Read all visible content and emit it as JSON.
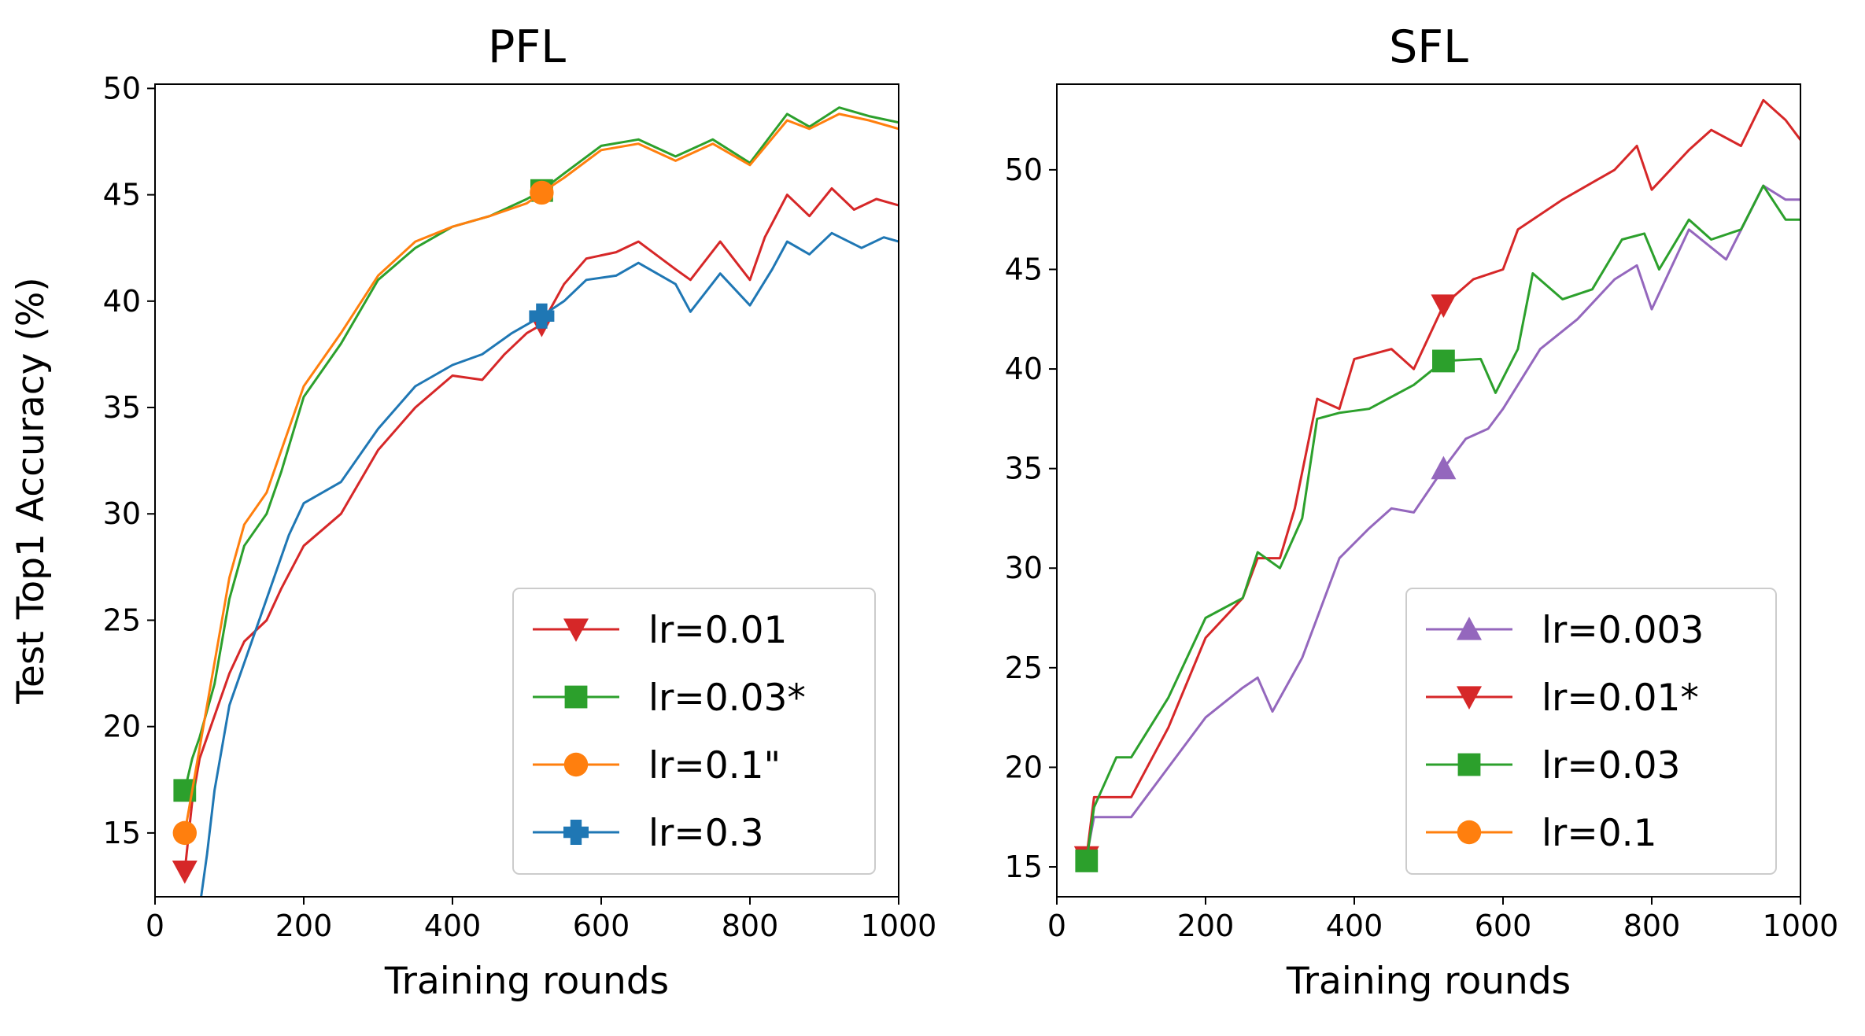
{
  "chart_data": [
    {
      "type": "line",
      "title": "PFL",
      "xlabel": "Training rounds",
      "ylabel": "Test Top1 Accuracy (%)",
      "xlim": [
        0,
        1000
      ],
      "ylim": [
        12,
        50.2
      ],
      "xticks": [
        0,
        200,
        400,
        600,
        800,
        1000
      ],
      "yticks": [
        15,
        20,
        25,
        30,
        35,
        40,
        45,
        50
      ],
      "legend_position": "lower right",
      "series": [
        {
          "name": "lr=0.01",
          "color": "#d62728",
          "marker": "triangle-down",
          "marker_points": [
            [
              40,
              13.2
            ],
            [
              520,
              38.9
            ]
          ],
          "points": [
            [
              40,
              13.2
            ],
            [
              50,
              16.5
            ],
            [
              60,
              18.5
            ],
            [
              80,
              20.5
            ],
            [
              100,
              22.5
            ],
            [
              120,
              24
            ],
            [
              150,
              25
            ],
            [
              170,
              26.5
            ],
            [
              200,
              28.5
            ],
            [
              250,
              30
            ],
            [
              300,
              33
            ],
            [
              350,
              35
            ],
            [
              400,
              36.5
            ],
            [
              440,
              36.3
            ],
            [
              470,
              37.5
            ],
            [
              500,
              38.5
            ],
            [
              520,
              38.9
            ],
            [
              550,
              40.8
            ],
            [
              580,
              42
            ],
            [
              620,
              42.3
            ],
            [
              650,
              42.8
            ],
            [
              700,
              41.5
            ],
            [
              720,
              41
            ],
            [
              760,
              42.8
            ],
            [
              800,
              41
            ],
            [
              820,
              43
            ],
            [
              850,
              45
            ],
            [
              880,
              44
            ],
            [
              910,
              45.3
            ],
            [
              940,
              44.3
            ],
            [
              970,
              44.8
            ],
            [
              1000,
              44.5
            ]
          ]
        },
        {
          "name": "lr=0.03*",
          "color": "#2ca02c",
          "marker": "square",
          "marker_points": [
            [
              40,
              17
            ],
            [
              520,
              45.2
            ]
          ],
          "points": [
            [
              40,
              17
            ],
            [
              50,
              18.5
            ],
            [
              60,
              19.5
            ],
            [
              80,
              22
            ],
            [
              100,
              26
            ],
            [
              120,
              28.5
            ],
            [
              150,
              30
            ],
            [
              170,
              32
            ],
            [
              200,
              35.5
            ],
            [
              250,
              38
            ],
            [
              300,
              41
            ],
            [
              350,
              42.5
            ],
            [
              400,
              43.5
            ],
            [
              450,
              44
            ],
            [
              500,
              44.8
            ],
            [
              520,
              45.2
            ],
            [
              550,
              46
            ],
            [
              600,
              47.3
            ],
            [
              650,
              47.6
            ],
            [
              700,
              46.8
            ],
            [
              750,
              47.6
            ],
            [
              800,
              46.5
            ],
            [
              850,
              48.8
            ],
            [
              880,
              48.2
            ],
            [
              920,
              49.1
            ],
            [
              960,
              48.7
            ],
            [
              1000,
              48.4
            ]
          ]
        },
        {
          "name": "lr=0.1\"",
          "color": "#ff7f0e",
          "marker": "circle",
          "marker_points": [
            [
              40,
              15
            ],
            [
              520,
              45.1
            ]
          ],
          "points": [
            [
              40,
              15
            ],
            [
              50,
              17
            ],
            [
              60,
              19
            ],
            [
              80,
              23
            ],
            [
              100,
              27
            ],
            [
              120,
              29.5
            ],
            [
              150,
              31
            ],
            [
              170,
              33
            ],
            [
              200,
              36
            ],
            [
              250,
              38.5
            ],
            [
              300,
              41.2
            ],
            [
              350,
              42.8
            ],
            [
              400,
              43.5
            ],
            [
              450,
              44
            ],
            [
              500,
              44.6
            ],
            [
              520,
              45.1
            ],
            [
              550,
              45.8
            ],
            [
              600,
              47.1
            ],
            [
              650,
              47.4
            ],
            [
              700,
              46.6
            ],
            [
              750,
              47.4
            ],
            [
              800,
              46.4
            ],
            [
              850,
              48.5
            ],
            [
              880,
              48.1
            ],
            [
              920,
              48.8
            ],
            [
              960,
              48.5
            ],
            [
              1000,
              48.1
            ]
          ]
        },
        {
          "name": "lr=0.3",
          "color": "#1f77b4",
          "marker": "plus",
          "marker_points": [
            [
              520,
              39.3
            ]
          ],
          "points": [
            [
              62,
              12
            ],
            [
              70,
              14
            ],
            [
              80,
              17
            ],
            [
              100,
              21
            ],
            [
              130,
              24
            ],
            [
              150,
              26
            ],
            [
              180,
              29
            ],
            [
              200,
              30.5
            ],
            [
              250,
              31.5
            ],
            [
              300,
              34
            ],
            [
              350,
              36
            ],
            [
              400,
              37
            ],
            [
              440,
              37.5
            ],
            [
              480,
              38.5
            ],
            [
              520,
              39.3
            ],
            [
              550,
              40
            ],
            [
              580,
              41
            ],
            [
              620,
              41.2
            ],
            [
              650,
              41.8
            ],
            [
              700,
              40.8
            ],
            [
              720,
              39.5
            ],
            [
              760,
              41.3
            ],
            [
              800,
              39.8
            ],
            [
              830,
              41.5
            ],
            [
              850,
              42.8
            ],
            [
              880,
              42.2
            ],
            [
              910,
              43.2
            ],
            [
              950,
              42.5
            ],
            [
              980,
              43
            ],
            [
              1000,
              42.8
            ]
          ]
        }
      ]
    },
    {
      "type": "line",
      "title": "SFL",
      "xlabel": "Training rounds",
      "ylabel": "",
      "xlim": [
        0,
        1000
      ],
      "ylim": [
        13.5,
        54.3
      ],
      "xticks": [
        0,
        200,
        400,
        600,
        800,
        1000
      ],
      "yticks": [
        15,
        20,
        25,
        30,
        35,
        40,
        45,
        50
      ],
      "legend_position": "lower right",
      "series": [
        {
          "name": "lr=0.003",
          "color": "#9467bd",
          "marker": "triangle-up",
          "marker_points": [
            [
              520,
              35
            ]
          ],
          "points": [
            [
              40,
              15.5
            ],
            [
              50,
              17.5
            ],
            [
              70,
              17.5
            ],
            [
              100,
              17.5
            ],
            [
              150,
              20
            ],
            [
              200,
              22.5
            ],
            [
              250,
              24
            ],
            [
              270,
              24.5
            ],
            [
              290,
              22.8
            ],
            [
              330,
              25.5
            ],
            [
              350,
              27.5
            ],
            [
              380,
              30.5
            ],
            [
              420,
              32
            ],
            [
              450,
              33
            ],
            [
              480,
              32.8
            ],
            [
              520,
              35
            ],
            [
              550,
              36.5
            ],
            [
              580,
              37
            ],
            [
              600,
              38
            ],
            [
              650,
              41
            ],
            [
              700,
              42.5
            ],
            [
              750,
              44.5
            ],
            [
              780,
              45.2
            ],
            [
              800,
              43
            ],
            [
              850,
              47
            ],
            [
              900,
              45.5
            ],
            [
              950,
              49.2
            ],
            [
              980,
              48.5
            ],
            [
              1000,
              48.5
            ]
          ]
        },
        {
          "name": "lr=0.01*",
          "color": "#d62728",
          "marker": "triangle-down",
          "marker_points": [
            [
              40,
              15.5
            ],
            [
              520,
              43.2
            ]
          ],
          "points": [
            [
              40,
              15.5
            ],
            [
              50,
              18.5
            ],
            [
              80,
              18.5
            ],
            [
              100,
              18.5
            ],
            [
              150,
              22
            ],
            [
              200,
              26.5
            ],
            [
              250,
              28.5
            ],
            [
              270,
              30.5
            ],
            [
              300,
              30.5
            ],
            [
              320,
              33
            ],
            [
              350,
              38.5
            ],
            [
              380,
              38
            ],
            [
              400,
              40.5
            ],
            [
              450,
              41
            ],
            [
              480,
              40
            ],
            [
              520,
              43.2
            ],
            [
              560,
              44.5
            ],
            [
              600,
              45
            ],
            [
              620,
              47
            ],
            [
              680,
              48.5
            ],
            [
              750,
              50
            ],
            [
              780,
              51.2
            ],
            [
              800,
              49
            ],
            [
              850,
              51
            ],
            [
              880,
              52
            ],
            [
              920,
              51.2
            ],
            [
              950,
              53.5
            ],
            [
              980,
              52.5
            ],
            [
              1000,
              51.5
            ]
          ]
        },
        {
          "name": "lr=0.03",
          "color": "#2ca02c",
          "marker": "square",
          "marker_points": [
            [
              40,
              15.3
            ],
            [
              520,
              40.4
            ]
          ],
          "points": [
            [
              40,
              15.3
            ],
            [
              50,
              18
            ],
            [
              80,
              20.5
            ],
            [
              100,
              20.5
            ],
            [
              150,
              23.5
            ],
            [
              200,
              27.5
            ],
            [
              250,
              28.5
            ],
            [
              270,
              30.8
            ],
            [
              300,
              30
            ],
            [
              330,
              32.5
            ],
            [
              350,
              37.5
            ],
            [
              380,
              37.8
            ],
            [
              420,
              38
            ],
            [
              480,
              39.2
            ],
            [
              520,
              40.4
            ],
            [
              570,
              40.5
            ],
            [
              590,
              38.8
            ],
            [
              620,
              41
            ],
            [
              640,
              44.8
            ],
            [
              680,
              43.5
            ],
            [
              720,
              44
            ],
            [
              760,
              46.5
            ],
            [
              790,
              46.8
            ],
            [
              810,
              45
            ],
            [
              850,
              47.5
            ],
            [
              880,
              46.5
            ],
            [
              920,
              47
            ],
            [
              950,
              49.2
            ],
            [
              980,
              47.5
            ],
            [
              1000,
              47.5
            ]
          ]
        },
        {
          "name": "lr=0.1",
          "color": "#ff7f0e",
          "marker": "circle",
          "marker_points": [],
          "points": []
        }
      ]
    }
  ]
}
